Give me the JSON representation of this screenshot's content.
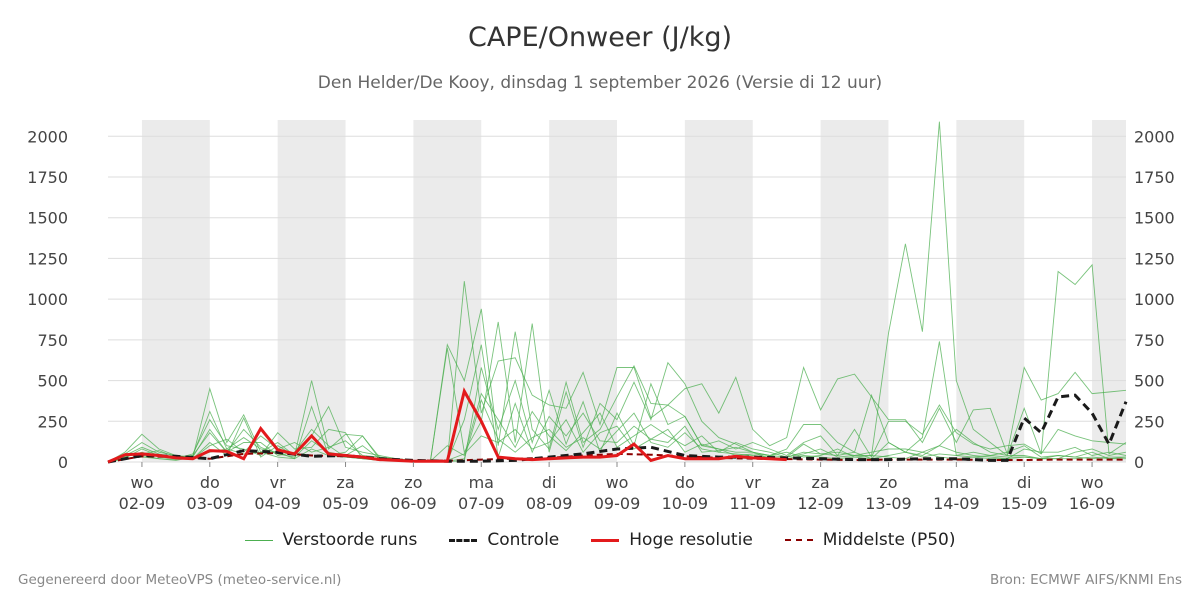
{
  "title": "CAPE/Onweer (J/kg)",
  "subtitle": "Den Helder/De Kooy, dinsdag  1 september 2026 (Versie di 12 uur)",
  "footer": {
    "left": "Gegenereerd door MeteoVPS (meteo-service.nl)",
    "right": "Bron: ECMWF AIFS/KNMI Ens"
  },
  "legend": [
    {
      "label": "Verstoorde runs",
      "style": "thin-green"
    },
    {
      "label": "Controle",
      "style": "dashed-black"
    },
    {
      "label": "Hoge resolutie",
      "style": "solid-red"
    },
    {
      "label": "Middelste (P50)",
      "style": "dashed-darkred"
    }
  ],
  "chart_data": {
    "type": "line",
    "title": "CAPE/Onweer (J/kg)",
    "xlabel": "",
    "ylabel": "",
    "ylim": [
      0,
      2100
    ],
    "yticks": [
      0,
      250,
      500,
      750,
      1000,
      1250,
      1500,
      1750,
      2000
    ],
    "xlim": [
      0.5,
      15.5
    ],
    "day_ticks": [
      {
        "x": 1,
        "day": "wo",
        "date": "02-09"
      },
      {
        "x": 2,
        "day": "do",
        "date": "03-09"
      },
      {
        "x": 3,
        "day": "vr",
        "date": "04-09"
      },
      {
        "x": 4,
        "day": "za",
        "date": "05-09"
      },
      {
        "x": 5,
        "day": "zo",
        "date": "06-09"
      },
      {
        "x": 6,
        "day": "ma",
        "date": "07-09"
      },
      {
        "x": 7,
        "day": "di",
        "date": "08-09"
      },
      {
        "x": 8,
        "day": "wo",
        "date": "09-09"
      },
      {
        "x": 9,
        "day": "do",
        "date": "10-09"
      },
      {
        "x": 10,
        "day": "vr",
        "date": "11-09"
      },
      {
        "x": 11,
        "day": "za",
        "date": "12-09"
      },
      {
        "x": 12,
        "day": "zo",
        "date": "13-09"
      },
      {
        "x": 13,
        "day": "ma",
        "date": "14-09"
      },
      {
        "x": 14,
        "day": "di",
        "date": "15-09"
      },
      {
        "x": 15,
        "day": "wo",
        "date": "16-09"
      }
    ],
    "shaded_bands": [
      [
        1,
        2
      ],
      [
        3,
        4
      ],
      [
        5,
        6
      ],
      [
        7,
        8
      ],
      [
        9,
        10
      ],
      [
        11,
        12
      ],
      [
        13,
        14
      ],
      [
        15,
        15.5
      ]
    ],
    "grid": true,
    "legend_position": "bottom",
    "colors": {
      "members": "#4caf50",
      "control": "#1a1a1a",
      "hires": "#e31a1c",
      "p50": "#8b0000",
      "band": "#ebebeb",
      "grid": "#dddddd"
    },
    "series": [
      {
        "name": "Hoge resolutie",
        "x": [
          0.5,
          0.75,
          1.0,
          1.25,
          1.5,
          1.75,
          2.0,
          2.25,
          2.5,
          2.75,
          3.0,
          3.25,
          3.5,
          3.75,
          4.0,
          4.25,
          4.5,
          4.75,
          5.0,
          5.25,
          5.5,
          5.75,
          6.0,
          6.25,
          6.5,
          6.75,
          7.0,
          7.25,
          7.5,
          7.75,
          8.0,
          8.25,
          8.5,
          8.75,
          9.0,
          9.25,
          9.5,
          9.75,
          10.0,
          10.25,
          10.5
        ],
        "values": [
          0,
          45,
          50,
          40,
          25,
          20,
          70,
          65,
          20,
          205,
          75,
          50,
          160,
          50,
          40,
          30,
          15,
          10,
          5,
          5,
          5,
          435,
          250,
          30,
          20,
          15,
          20,
          25,
          30,
          30,
          40,
          110,
          10,
          40,
          20,
          20,
          20,
          35,
          25,
          20,
          15
        ]
      },
      {
        "name": "Controle",
        "x": [
          0.5,
          1.0,
          1.5,
          2.0,
          2.5,
          3.0,
          3.5,
          4.0,
          4.5,
          5.0,
          5.5,
          6.0,
          6.5,
          7.0,
          7.5,
          8.0,
          8.5,
          9.0,
          9.5,
          10.0,
          10.5,
          11.0,
          11.5,
          12.0,
          12.5,
          13.0,
          13.5,
          13.75,
          14.0,
          14.25,
          14.5,
          14.75,
          15.0,
          15.25,
          15.5
        ],
        "values": [
          0,
          40,
          35,
          20,
          70,
          60,
          35,
          40,
          20,
          10,
          5,
          5,
          10,
          30,
          50,
          80,
          90,
          40,
          30,
          30,
          25,
          20,
          15,
          15,
          20,
          20,
          10,
          10,
          270,
          180,
          400,
          410,
          300,
          110,
          370
        ]
      },
      {
        "name": "Middelste (P50)",
        "x": [
          0.5,
          1.0,
          1.5,
          2.0,
          2.5,
          3.0,
          3.5,
          4.0,
          4.5,
          5.0,
          5.5,
          6.0,
          6.5,
          7.0,
          7.5,
          8.0,
          8.5,
          9.0,
          9.5,
          10.0,
          10.5,
          11.0,
          11.5,
          12.0,
          12.5,
          13.0,
          13.5,
          14.0,
          14.5,
          15.0,
          15.5
        ],
        "values": [
          0,
          35,
          30,
          20,
          50,
          55,
          40,
          35,
          20,
          10,
          8,
          15,
          20,
          25,
          40,
          50,
          45,
          35,
          25,
          20,
          18,
          15,
          12,
          15,
          15,
          15,
          12,
          12,
          15,
          15,
          15
        ]
      }
    ],
    "ensemble_members": {
      "name": "Verstoorde runs",
      "x": [
        0.5,
        0.75,
        1.0,
        1.25,
        1.5,
        1.75,
        2.0,
        2.25,
        2.5,
        2.75,
        3.0,
        3.25,
        3.5,
        3.75,
        4.0,
        4.25,
        4.5,
        4.75,
        5.0,
        5.25,
        5.5,
        5.75,
        6.0,
        6.25,
        6.5,
        6.75,
        7.0,
        7.25,
        7.5,
        7.75,
        8.0,
        8.25,
        8.5,
        8.75,
        9.0,
        9.25,
        9.5,
        9.75,
        10.0,
        10.25,
        10.5,
        10.75,
        11.0,
        11.25,
        11.5,
        11.75,
        12.0,
        12.25,
        12.5,
        12.75,
        13.0,
        13.25,
        13.5,
        13.75,
        14.0,
        14.25,
        14.5,
        14.75,
        15.0,
        15.25,
        15.5
      ],
      "runs": [
        [
          0,
          60,
          170,
          80,
          40,
          30,
          450,
          120,
          290,
          60,
          120,
          40,
          500,
          80,
          170,
          160,
          30,
          20,
          10,
          5,
          5,
          1110,
          300,
          620,
          640,
          410,
          350,
          330,
          550,
          230,
          580,
          580,
          270,
          350,
          450,
          480,
          300,
          520,
          200,
          100,
          150,
          580,
          320,
          510,
          540,
          400,
          260,
          260,
          120,
          330,
          120,
          320,
          330,
          50,
          580,
          380,
          420,
          550,
          420,
          430,
          440
        ],
        [
          0,
          30,
          60,
          30,
          20,
          40,
          310,
          80,
          150,
          80,
          60,
          20,
          340,
          40,
          60,
          160,
          20,
          10,
          8,
          5,
          720,
          500,
          940,
          100,
          800,
          200,
          80,
          490,
          120,
          200,
          400,
          590,
          360,
          350,
          280,
          100,
          80,
          60,
          60,
          40,
          30,
          60,
          50,
          60,
          40,
          40,
          790,
          1340,
          800,
          2090,
          500,
          200,
          120,
          40,
          330,
          50,
          1170,
          1090,
          1210,
          50,
          120
        ],
        [
          0,
          20,
          40,
          20,
          10,
          30,
          200,
          60,
          120,
          120,
          40,
          60,
          200,
          100,
          30,
          20,
          10,
          10,
          5,
          5,
          700,
          60,
          250,
          860,
          120,
          850,
          60,
          430,
          90,
          360,
          260,
          490,
          260,
          610,
          480,
          250,
          150,
          110,
          60,
          40,
          80,
          230,
          230,
          120,
          60,
          410,
          120,
          60,
          150,
          740,
          40,
          60,
          40,
          60,
          100,
          30,
          40,
          30,
          20,
          30,
          30
        ],
        [
          0,
          40,
          90,
          50,
          30,
          20,
          120,
          40,
          270,
          30,
          100,
          40,
          160,
          340,
          90,
          60,
          40,
          20,
          10,
          5,
          5,
          5,
          580,
          200,
          500,
          120,
          440,
          110,
          370,
          60,
          300,
          100,
          480,
          230,
          280,
          100,
          130,
          80,
          120,
          80,
          40,
          120,
          160,
          40,
          200,
          30,
          250,
          250,
          170,
          350,
          180,
          110,
          80,
          100,
          110,
          50,
          200,
          160,
          130,
          120,
          110
        ],
        [
          0,
          25,
          80,
          40,
          20,
          50,
          260,
          100,
          80,
          40,
          180,
          80,
          90,
          200,
          180,
          20,
          10,
          8,
          6,
          4,
          3,
          260,
          720,
          30,
          360,
          60,
          280,
          160,
          300,
          130,
          120,
          220,
          140,
          120,
          220,
          60,
          70,
          90,
          60,
          20,
          30,
          110,
          50,
          40,
          60,
          20,
          120,
          60,
          40,
          100,
          200,
          120,
          60,
          40,
          40,
          20,
          20,
          60,
          80,
          40,
          60
        ],
        [
          0,
          50,
          120,
          60,
          40,
          20,
          100,
          140,
          60,
          160,
          80,
          120,
          60,
          90,
          130,
          40,
          30,
          15,
          8,
          5,
          100,
          40,
          420,
          260,
          90,
          310,
          160,
          70,
          180,
          300,
          90,
          160,
          230,
          160,
          100,
          160,
          60,
          120,
          80,
          60,
          30,
          50,
          80,
          30,
          40,
          60,
          80,
          80,
          60,
          100,
          60,
          40,
          30,
          20,
          80,
          60,
          60,
          90,
          40,
          60,
          40
        ],
        [
          0,
          35,
          50,
          70,
          30,
          40,
          180,
          60,
          200,
          90,
          50,
          30,
          130,
          60,
          40,
          100,
          20,
          10,
          5,
          5,
          10,
          50,
          160,
          120,
          200,
          80,
          120,
          260,
          60,
          180,
          220,
          80,
          140,
          200,
          60,
          110,
          80,
          40,
          50,
          40,
          60,
          30,
          40,
          80,
          30,
          20,
          40,
          60,
          30,
          50,
          40,
          30,
          40,
          30,
          30,
          20,
          40,
          30,
          60,
          20,
          30
        ],
        [
          0,
          20,
          30,
          20,
          15,
          30,
          60,
          80,
          50,
          60,
          30,
          20,
          80,
          40,
          30,
          20,
          15,
          8,
          5,
          5,
          5,
          20,
          380,
          140,
          60,
          150,
          200,
          90,
          150,
          80,
          190,
          300,
          120,
          90,
          180,
          80,
          60,
          50,
          40,
          30,
          20,
          40,
          30,
          20,
          30,
          40,
          30,
          20,
          60,
          30,
          20,
          30,
          20,
          20,
          30,
          20,
          20,
          20,
          30,
          20,
          20
        ]
      ]
    }
  }
}
